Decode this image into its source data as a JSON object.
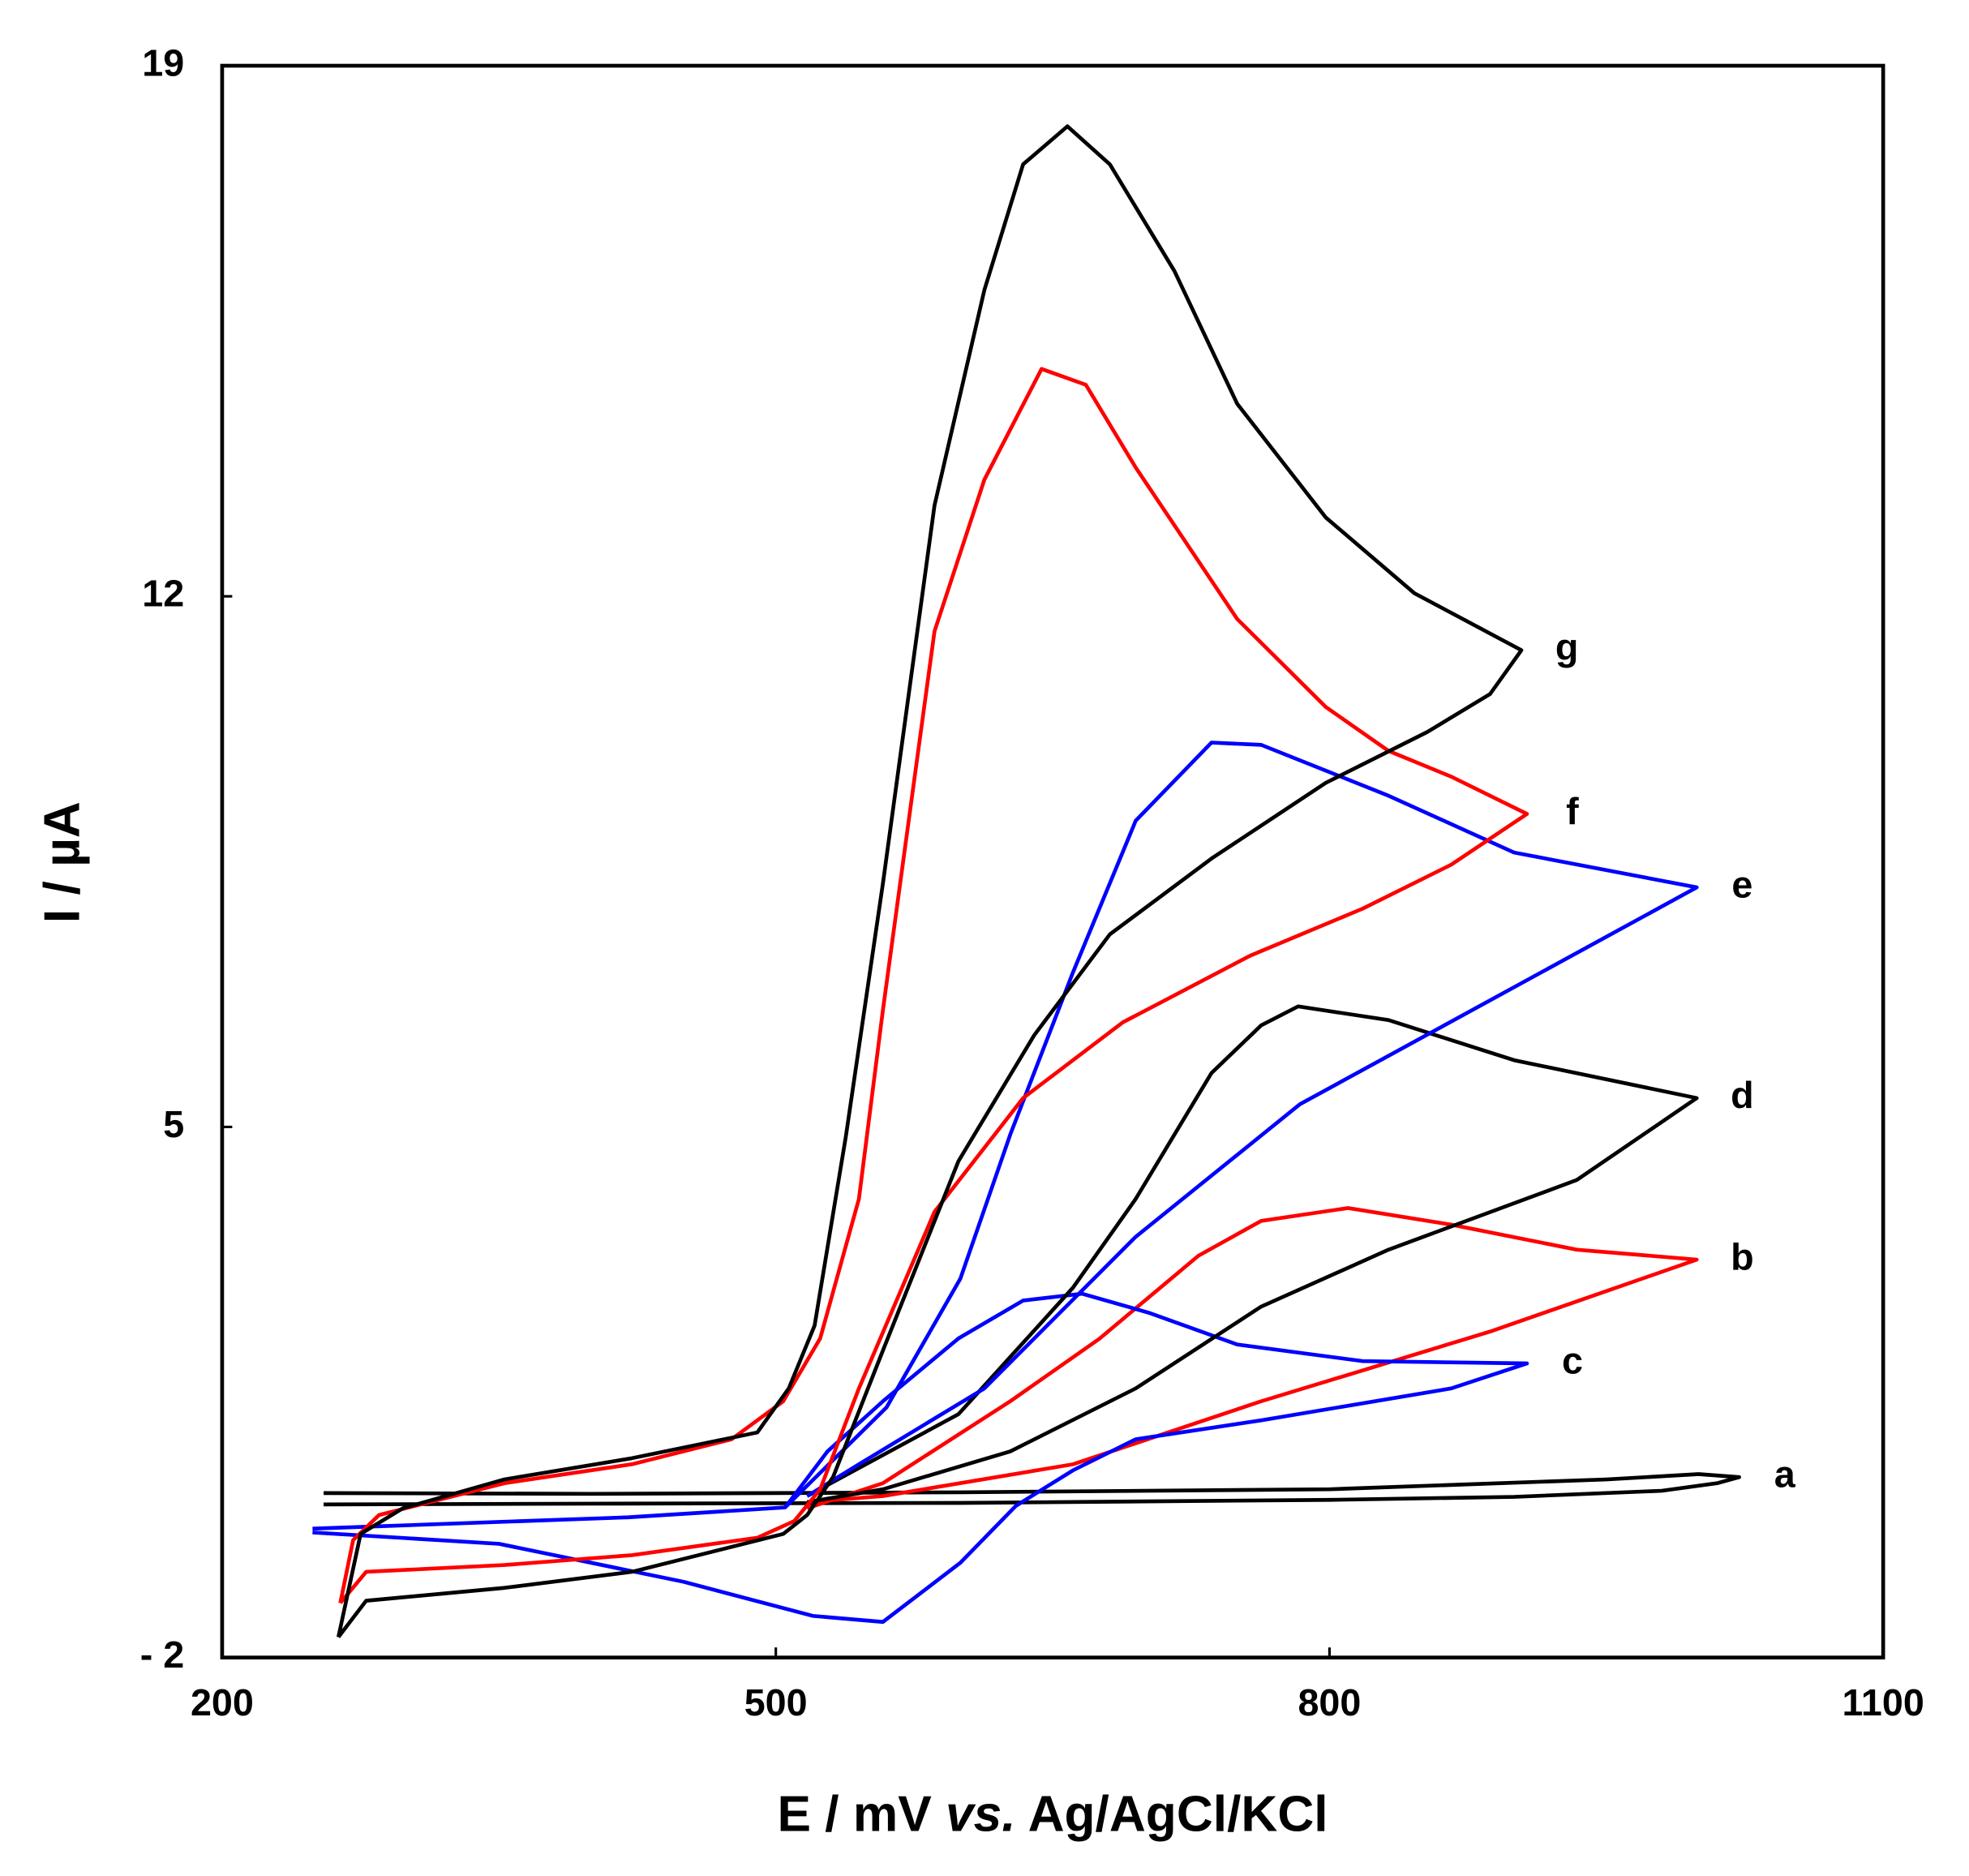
{
  "chart_data": {
    "type": "line",
    "xlabel": [
      "E / mV ",
      "vs.",
      " Ag/AgCl/KCl"
    ],
    "ylabel": "I / µA",
    "xlim": [
      200,
      1100
    ],
    "xticks": [
      200,
      500,
      800,
      1100
    ],
    "ylim": [
      -2,
      19
    ],
    "yticks": [
      {
        "value": -2,
        "label": "- 2"
      },
      5,
      12,
      19
    ],
    "series": [
      {
        "name": "a",
        "color": "#000000",
        "x": [
          255,
          400,
          600,
          800,
          900,
          980,
          1010,
          1022,
          1000,
          950,
          800,
          600,
          400,
          255
        ],
        "values": [
          0.02,
          0.03,
          0.04,
          0.08,
          0.12,
          0.2,
          0.3,
          0.38,
          0.42,
          0.35,
          0.22,
          0.18,
          0.16,
          0.17
        ]
      },
      {
        "name": "b",
        "color": "#ff0000",
        "x": [
          517,
          558,
          627,
          675,
          729,
          763,
          810,
          866,
          934,
          999,
          887,
          763,
          661,
          558,
          517
        ],
        "values": [
          -0.03,
          0.3,
          1.38,
          2.2,
          3.3,
          3.76,
          3.93,
          3.71,
          3.38,
          3.25,
          2.3,
          1.38,
          0.55,
          0.13,
          0.05
        ]
      },
      {
        "name": "c",
        "color": "#0000ff",
        "x": [
          249,
          420,
          505,
          528,
          558,
          599,
          634,
          666,
          702,
          750,
          818,
          907,
          866,
          763,
          695,
          661,
          630,
          600,
          558,
          520,
          450,
          350,
          249
        ],
        "values": [
          -0.3,
          -0.15,
          -0.02,
          0.72,
          1.38,
          2.21,
          2.71,
          2.8,
          2.55,
          2.13,
          1.91,
          1.88,
          1.55,
          1.13,
          0.88,
          0.47,
          0.0,
          -0.75,
          -1.53,
          -1.45,
          -1.0,
          -0.5,
          -0.35
        ]
      },
      {
        "name": "d",
        "color": "#000000",
        "x": [
          517,
          599,
          661,
          695,
          736,
          763,
          783,
          832,
          900,
          999,
          934,
          832,
          763,
          695,
          627,
          558,
          517
        ],
        "values": [
          0.13,
          1.21,
          2.88,
          4.05,
          5.71,
          6.34,
          6.59,
          6.41,
          5.88,
          5.38,
          4.3,
          3.38,
          2.63,
          1.55,
          0.72,
          0.22,
          0.05
        ]
      },
      {
        "name": "e",
        "color": "#0000ff",
        "x": [
          505,
          560,
          600,
          627,
          661,
          695,
          736,
          763,
          832,
          900,
          999,
          784,
          695,
          613,
          545,
          517
        ],
        "values": [
          -0.02,
          1.3,
          3.0,
          4.9,
          7.04,
          9.04,
          10.07,
          10.04,
          9.37,
          8.62,
          8.16,
          5.3,
          3.55,
          1.55,
          0.55,
          0.13
        ]
      },
      {
        "name": "f",
        "color": "#ff0000",
        "x": [
          264,
          271,
          285,
          353,
          422,
          476,
          504,
          524,
          545,
          558,
          586,
          613,
          644,
          668,
          695,
          750,
          798,
          832,
          866,
          907,
          866,
          818,
          757,
          688,
          634,
          586,
          545,
          524,
          510,
          490,
          422,
          353,
          278,
          264
        ],
        "values": [
          -1.28,
          -0.45,
          -0.12,
          0.3,
          0.55,
          0.88,
          1.38,
          2.21,
          4.05,
          6.54,
          11.54,
          13.54,
          15.0,
          14.79,
          13.7,
          11.7,
          10.54,
          9.96,
          9.62,
          9.13,
          8.46,
          7.88,
          7.26,
          6.38,
          5.38,
          3.88,
          1.55,
          0.22,
          -0.2,
          -0.42,
          -0.65,
          -0.78,
          -0.87,
          -1.28
        ]
      },
      {
        "name": "g",
        "color": "#000000",
        "x": [
          263,
          275,
          298,
          353,
          422,
          490,
          507,
          521,
          538,
          558,
          586,
          613,
          634,
          658,
          681,
          716,
          750,
          798,
          846,
          904,
          887,
          853,
          798,
          736,
          681,
          640,
          599,
          558,
          531,
          517,
          504,
          422,
          353,
          278,
          263
        ],
        "values": [
          -1.73,
          -0.37,
          -0.03,
          0.35,
          0.63,
          0.97,
          1.55,
          2.38,
          4.88,
          8.21,
          13.2,
          16.04,
          17.7,
          18.2,
          17.7,
          16.29,
          14.54,
          13.04,
          12.04,
          11.29,
          10.71,
          10.21,
          9.54,
          8.54,
          7.54,
          6.21,
          4.55,
          2.05,
          0.38,
          -0.12,
          -0.37,
          -0.87,
          -1.08,
          -1.25,
          -1.73
        ]
      }
    ]
  }
}
